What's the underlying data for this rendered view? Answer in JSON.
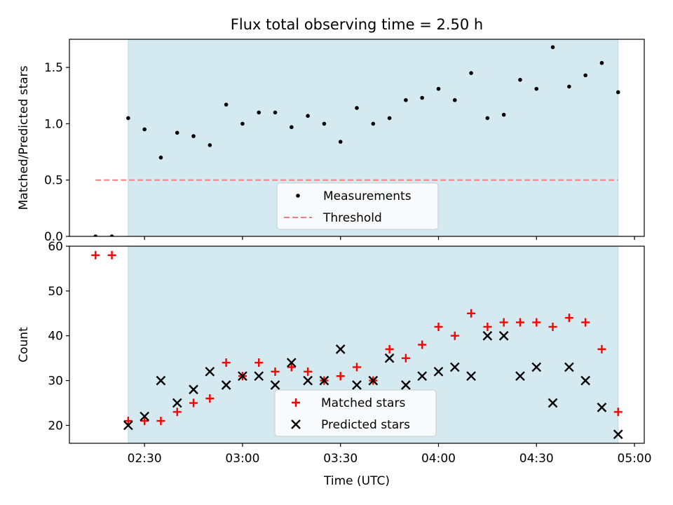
{
  "chart_data": {
    "title": "Flux total observing time = 2.50 h",
    "xlabel": "Time (UTC)",
    "x_ticks": [
      "02:30",
      "03:00",
      "03:30",
      "04:00",
      "04:30",
      "05:00"
    ],
    "x_tick_minutes": [
      150,
      180,
      210,
      240,
      270,
      300
    ],
    "xlim_minutes": [
      127,
      303
    ],
    "x_unit_note": "x values are minutes after 00:00 UTC",
    "shaded_interval_minutes": [
      145,
      295
    ],
    "shade_color": "#d4eaf0",
    "panels": [
      {
        "type": "scatter",
        "ylabel": "Matched/Predicted stars",
        "ylim": [
          0,
          1.75
        ],
        "y_ticks": [
          0.0,
          0.5,
          1.0,
          1.5
        ],
        "y_tick_labels": [
          "0.0",
          "0.5",
          "1.0",
          "1.5"
        ],
        "legend_loc": "lower center",
        "series": [
          {
            "name": "Measurements",
            "marker": "dot",
            "color": "#000000",
            "x": [
              135,
              140,
              145,
              150,
              155,
              160,
              165,
              170,
              175,
              180,
              185,
              190,
              195,
              200,
              205,
              210,
              215,
              220,
              225,
              230,
              235,
              240,
              245,
              250,
              255,
              260,
              265,
              270,
              275,
              280,
              285,
              290,
              295
            ],
            "y": [
              0.0,
              0.0,
              1.05,
              0.95,
              0.7,
              0.92,
              0.89,
              0.81,
              1.17,
              1.0,
              1.1,
              1.1,
              0.97,
              1.07,
              1.0,
              0.84,
              1.14,
              1.0,
              1.05,
              1.21,
              1.23,
              1.31,
              1.21,
              1.45,
              1.05,
              1.08,
              1.39,
              1.31,
              1.68,
              1.33,
              1.43,
              1.54,
              1.28
            ]
          },
          {
            "name": "Threshold",
            "marker": "dashed-line",
            "color": "#f08080",
            "x": [
              135,
              295
            ],
            "y": [
              0.5,
              0.5
            ]
          }
        ]
      },
      {
        "type": "scatter",
        "ylabel": "Count",
        "ylim": [
          16,
          60
        ],
        "y_ticks": [
          20,
          30,
          40,
          50,
          60
        ],
        "y_tick_labels": [
          "20",
          "30",
          "40",
          "50",
          "60"
        ],
        "legend_loc": "lower center",
        "series": [
          {
            "name": "Matched stars",
            "marker": "plus",
            "color": "#ff0000",
            "x": [
              135,
              140,
              145,
              150,
              155,
              160,
              165,
              170,
              175,
              180,
              185,
              190,
              195,
              200,
              205,
              210,
              215,
              220,
              225,
              230,
              235,
              240,
              245,
              250,
              255,
              260,
              265,
              270,
              275,
              280,
              285,
              290,
              295
            ],
            "y": [
              58,
              58,
              21,
              21,
              21,
              23,
              25,
              26,
              34,
              31,
              34,
              32,
              33,
              32,
              30,
              31,
              33,
              30,
              37,
              35,
              38,
              42,
              40,
              45,
              42,
              43,
              43,
              43,
              42,
              44,
              43,
              37,
              23
            ]
          },
          {
            "name": "Predicted stars",
            "marker": "x",
            "color": "#000000",
            "x": [
              145,
              150,
              155,
              160,
              165,
              170,
              175,
              180,
              185,
              190,
              195,
              200,
              205,
              210,
              215,
              220,
              225,
              230,
              235,
              240,
              245,
              250,
              255,
              260,
              265,
              270,
              275,
              280,
              285,
              290,
              295
            ],
            "y": [
              20,
              22,
              30,
              25,
              28,
              32,
              29,
              31,
              31,
              29,
              34,
              30,
              30,
              37,
              29,
              30,
              35,
              29,
              31,
              32,
              33,
              31,
              40,
              40,
              31,
              33,
              25,
              33,
              30,
              24,
              18
            ]
          }
        ]
      }
    ]
  }
}
